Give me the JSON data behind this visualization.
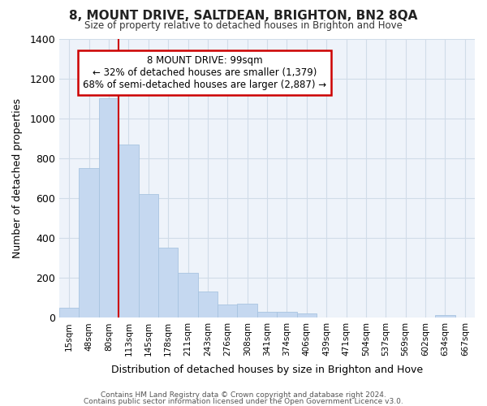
{
  "title": "8, MOUNT DRIVE, SALTDEAN, BRIGHTON, BN2 8QA",
  "subtitle": "Size of property relative to detached houses in Brighton and Hove",
  "xlabel": "Distribution of detached houses by size in Brighton and Hove",
  "ylabel": "Number of detached properties",
  "footer1": "Contains HM Land Registry data © Crown copyright and database right 2024.",
  "footer2": "Contains public sector information licensed under the Open Government Licence v3.0.",
  "annotation_title": "8 MOUNT DRIVE: 99sqm",
  "annotation_line1": "← 32% of detached houses are smaller (1,379)",
  "annotation_line2": "68% of semi-detached houses are larger (2,887) →",
  "bar_labels": [
    "15sqm",
    "48sqm",
    "80sqm",
    "113sqm",
    "145sqm",
    "178sqm",
    "211sqm",
    "243sqm",
    "276sqm",
    "308sqm",
    "341sqm",
    "374sqm",
    "406sqm",
    "439sqm",
    "471sqm",
    "504sqm",
    "537sqm",
    "569sqm",
    "602sqm",
    "634sqm",
    "667sqm"
  ],
  "bar_values": [
    50,
    750,
    1100,
    870,
    620,
    350,
    225,
    130,
    65,
    70,
    30,
    30,
    20,
    0,
    0,
    0,
    0,
    0,
    0,
    15,
    0
  ],
  "bar_color": "#c5d8f0",
  "bar_edge_color": "#a8c4e0",
  "vline_color": "#cc0000",
  "vline_x_idx": 2,
  "ylim": [
    0,
    1400
  ],
  "yticks": [
    0,
    200,
    400,
    600,
    800,
    1000,
    1200,
    1400
  ],
  "grid_color": "#d0dce8",
  "bg_color": "#ffffff",
  "plot_bg_color": "#eef3fa",
  "annotation_box_facecolor": "#ffffff",
  "annotation_box_edgecolor": "#cc0000"
}
